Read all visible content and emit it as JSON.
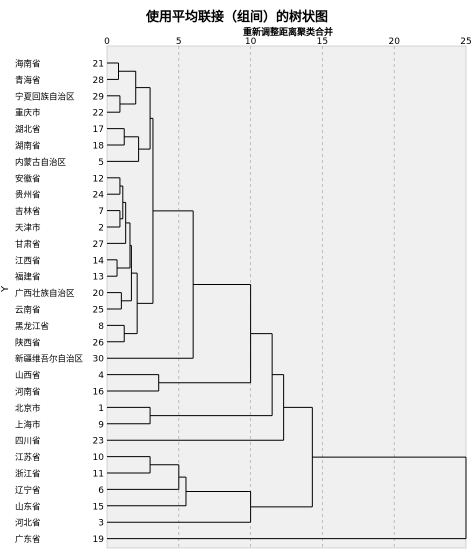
{
  "title": "使用平均联接（组间）的树状图",
  "subtitle": "重新调整距离聚类合并",
  "ylabel": "Y",
  "chart_data": {
    "type": "dendrogram",
    "x_axis_ticks": [
      0,
      5,
      10,
      15,
      20,
      25
    ],
    "x_range": [
      0,
      25
    ],
    "leaves": [
      {
        "name": "海南省",
        "id": "21"
      },
      {
        "name": "青海省",
        "id": "28"
      },
      {
        "name": "宁夏回族自治区",
        "id": "29"
      },
      {
        "name": "重庆市",
        "id": "22"
      },
      {
        "name": "湖北省",
        "id": "17"
      },
      {
        "name": "湖南省",
        "id": "18"
      },
      {
        "name": "内蒙古自治区",
        "id": "5"
      },
      {
        "name": "安徽省",
        "id": "12"
      },
      {
        "name": "贵州省",
        "id": "24"
      },
      {
        "name": "吉林省",
        "id": "7"
      },
      {
        "name": "天津市",
        "id": "2"
      },
      {
        "name": "甘肃省",
        "id": "27"
      },
      {
        "name": "江西省",
        "id": "14"
      },
      {
        "name": "福建省",
        "id": "13"
      },
      {
        "name": "广西壮族自治区",
        "id": "20"
      },
      {
        "name": "云南省",
        "id": "25"
      },
      {
        "name": "黑龙江省",
        "id": "8"
      },
      {
        "name": "陕西省",
        "id": "26"
      },
      {
        "name": "新疆维吾尔自治区",
        "id": "30"
      },
      {
        "name": "山西省",
        "id": "4"
      },
      {
        "name": "河南省",
        "id": "16"
      },
      {
        "name": "北京市",
        "id": "1"
      },
      {
        "name": "上海市",
        "id": "9"
      },
      {
        "name": "四川省",
        "id": "23"
      },
      {
        "name": "江苏省",
        "id": "10"
      },
      {
        "name": "浙江省",
        "id": "11"
      },
      {
        "name": "辽宁省",
        "id": "6"
      },
      {
        "name": "山东省",
        "id": "15"
      },
      {
        "name": "河北省",
        "id": "3"
      },
      {
        "name": "广东省",
        "id": "19"
      }
    ],
    "merges": [
      {
        "id": "n0",
        "height": 0.7,
        "children": [
          12,
          13
        ]
      },
      {
        "id": "n1",
        "height": 0.8,
        "children": [
          0,
          1
        ]
      },
      {
        "id": "n2",
        "height": 0.9,
        "children": [
          7,
          8
        ]
      },
      {
        "id": "n3",
        "height": 0.9,
        "children": [
          2,
          3
        ]
      },
      {
        "id": "n4",
        "height": 0.9,
        "children": [
          9,
          10
        ]
      },
      {
        "id": "n5",
        "height": 1.0,
        "children": [
          14,
          15
        ]
      },
      {
        "id": "n6",
        "height": 1.1,
        "children": [
          "n2",
          "n4"
        ]
      },
      {
        "id": "n7",
        "height": 1.2,
        "children": [
          4,
          5
        ]
      },
      {
        "id": "n8",
        "height": 1.2,
        "children": [
          16,
          17
        ]
      },
      {
        "id": "n9",
        "height": 1.3,
        "children": [
          "n6",
          11
        ]
      },
      {
        "id": "n10",
        "height": 1.6,
        "children": [
          "n9",
          "n0"
        ]
      },
      {
        "id": "n11",
        "height": 1.7,
        "children": [
          "n10",
          "n5"
        ]
      },
      {
        "id": "n12",
        "height": 2.0,
        "children": [
          "n1",
          "n3"
        ]
      },
      {
        "id": "n13",
        "height": 2.1,
        "children": [
          "n11",
          "n8"
        ]
      },
      {
        "id": "n14",
        "height": 2.2,
        "children": [
          "n7",
          6
        ]
      },
      {
        "id": "n15",
        "height": 3.0,
        "children": [
          "n12",
          "n14"
        ]
      },
      {
        "id": "n16",
        "height": 3.0,
        "children": [
          21,
          22
        ]
      },
      {
        "id": "n17",
        "height": 3.0,
        "children": [
          24,
          25
        ]
      },
      {
        "id": "n18",
        "height": 3.2,
        "children": [
          "n15",
          "n13"
        ]
      },
      {
        "id": "n19",
        "height": 3.6,
        "children": [
          19,
          20
        ]
      },
      {
        "id": "n20",
        "height": 5.0,
        "children": [
          "n17",
          26
        ]
      },
      {
        "id": "n21",
        "height": 5.5,
        "children": [
          "n20",
          27
        ]
      },
      {
        "id": "n22",
        "height": 6.0,
        "children": [
          "n18",
          18
        ]
      },
      {
        "id": "n23",
        "height": 10.0,
        "children": [
          "n21",
          28
        ]
      },
      {
        "id": "n24",
        "height": 10.0,
        "children": [
          "n22",
          "n19"
        ]
      },
      {
        "id": "n25",
        "height": 11.5,
        "children": [
          "n24",
          "n16"
        ]
      },
      {
        "id": "n26",
        "height": 12.3,
        "children": [
          "n25",
          23
        ]
      },
      {
        "id": "n27",
        "height": 14.3,
        "children": [
          "n26",
          "n23"
        ]
      },
      {
        "id": "n28",
        "height": 25.0,
        "children": [
          "n27",
          29
        ]
      }
    ]
  }
}
